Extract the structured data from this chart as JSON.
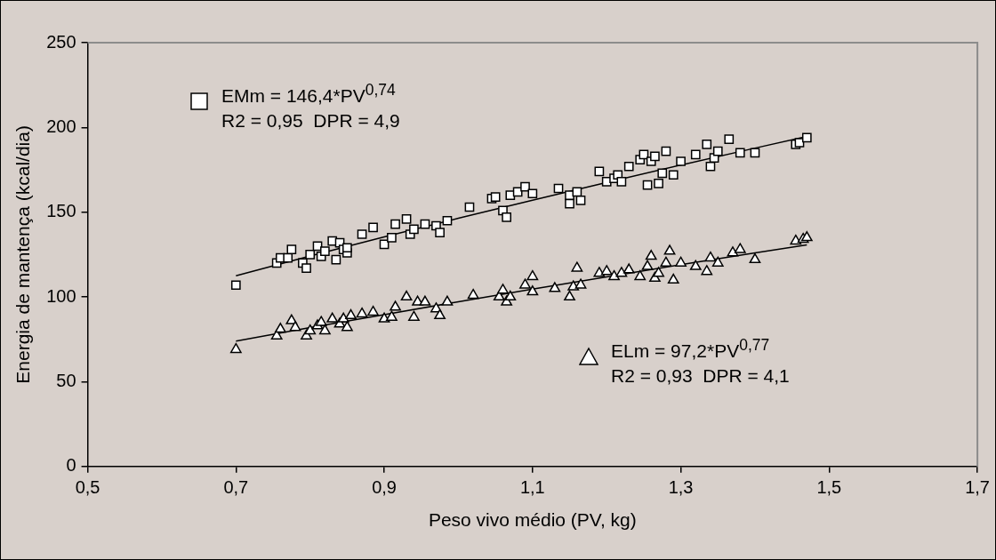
{
  "chart_data": {
    "type": "scatter",
    "xlabel": "Peso vivo médio (PV, kg)",
    "ylabel": "Energia de mantença (kcal/dia)",
    "xlim": [
      0.5,
      1.7
    ],
    "xticks": [
      {
        "value": 0.5,
        "label": "0,5"
      },
      {
        "value": 0.7,
        "label": "0,7"
      },
      {
        "value": 0.9,
        "label": "0,9"
      },
      {
        "value": 1.1,
        "label": "1,1"
      },
      {
        "value": 1.3,
        "label": "1,3"
      },
      {
        "value": 1.5,
        "label": "1,5"
      },
      {
        "value": 1.7,
        "label": "1,7"
      }
    ],
    "ylim": [
      0,
      250
    ],
    "yticks": [
      0,
      50,
      100,
      150,
      200,
      250
    ],
    "grid": false,
    "legend": "top left",
    "annotations": [
      "R2 = 0,95  DPR = 4,9",
      "R2 = 0,93  DPR = 4,1"
    ],
    "series": [
      {
        "name": "EMm = 146,4*PV$^{0,74}$",
        "type": "scatter",
        "marker": "square",
        "color": "#ffffff",
        "x": [
          0.7,
          0.755,
          0.76,
          0.77,
          0.775,
          0.79,
          0.795,
          0.8,
          0.81,
          0.815,
          0.82,
          0.83,
          0.835,
          0.84,
          0.845,
          0.85,
          0.85,
          0.87,
          0.885,
          0.9,
          0.91,
          0.915,
          0.93,
          0.935,
          0.94,
          0.955,
          0.97,
          0.975,
          0.985,
          1.015,
          1.045,
          1.05,
          1.06,
          1.065,
          1.07,
          1.08,
          1.09,
          1.1,
          1.135,
          1.15,
          1.15,
          1.16,
          1.165,
          1.19,
          1.2,
          1.21,
          1.215,
          1.22,
          1.23,
          1.245,
          1.25,
          1.255,
          1.26,
          1.265,
          1.27,
          1.275,
          1.28,
          1.29,
          1.3,
          1.32,
          1.335,
          1.34,
          1.345,
          1.35,
          1.365,
          1.38,
          1.4,
          1.455,
          1.46,
          1.47
        ],
        "values": [
          107,
          120,
          123,
          123,
          128,
          120,
          117,
          125,
          130,
          124,
          127,
          133,
          122,
          132,
          128,
          126,
          129,
          137,
          141,
          131,
          135,
          143,
          146,
          137,
          140,
          143,
          142,
          138,
          145,
          153,
          158,
          159,
          151,
          147,
          160,
          162,
          165,
          161,
          164,
          155,
          160,
          162,
          157,
          174,
          168,
          170,
          172,
          168,
          177,
          181,
          184,
          166,
          180,
          183,
          167,
          173,
          186,
          172,
          180,
          184,
          190,
          177,
          182,
          186,
          193,
          185,
          185,
          190,
          191,
          194
        ]
      },
      {
        "name": "ELm = 97,2*PV$^{0,77}$",
        "type": "scatter",
        "marker": "triangle",
        "color": "#ffffff",
        "x": [
          0.7,
          0.755,
          0.76,
          0.775,
          0.78,
          0.795,
          0.8,
          0.81,
          0.815,
          0.82,
          0.83,
          0.84,
          0.845,
          0.85,
          0.855,
          0.87,
          0.885,
          0.9,
          0.91,
          0.915,
          0.93,
          0.94,
          0.945,
          0.955,
          0.97,
          0.975,
          0.985,
          1.02,
          1.055,
          1.06,
          1.065,
          1.07,
          1.09,
          1.1,
          1.1,
          1.13,
          1.15,
          1.155,
          1.16,
          1.165,
          1.19,
          1.2,
          1.21,
          1.22,
          1.23,
          1.245,
          1.255,
          1.26,
          1.265,
          1.27,
          1.28,
          1.285,
          1.29,
          1.3,
          1.32,
          1.335,
          1.34,
          1.35,
          1.37,
          1.38,
          1.4,
          1.455,
          1.465,
          1.47
        ],
        "values": [
          69,
          77,
          81,
          86,
          82,
          77,
          80,
          83,
          85,
          80,
          87,
          84,
          87,
          82,
          89,
          90,
          91,
          87,
          88,
          94,
          100,
          88,
          97,
          97,
          93,
          89,
          97,
          101,
          100,
          104,
          97,
          100,
          107,
          112,
          103,
          105,
          100,
          106,
          117,
          107,
          114,
          115,
          112,
          114,
          116,
          112,
          118,
          124,
          111,
          114,
          120,
          127,
          110,
          120,
          118,
          115,
          123,
          120,
          126,
          128,
          122,
          133,
          134,
          135
        ]
      },
      {
        "type": "line",
        "marker": "none",
        "color": "#000000",
        "x": [
          0.7,
          0.8,
          0.9,
          1.0,
          1.1,
          1.2,
          1.3,
          1.4,
          1.47
        ],
        "values": [
          112.5,
          124.2,
          135.4,
          146.4,
          157.1,
          167.5,
          177.8,
          187.8,
          194.7
        ]
      },
      {
        "type": "line",
        "marker": "none",
        "color": "#000000",
        "x": [
          0.7,
          0.8,
          0.9,
          1.0,
          1.1,
          1.2,
          1.3,
          1.4,
          1.47
        ],
        "values": [
          73.9,
          81.9,
          89.6,
          97.2,
          104.6,
          111.8,
          119.0,
          126.0,
          130.7
        ]
      }
    ]
  }
}
